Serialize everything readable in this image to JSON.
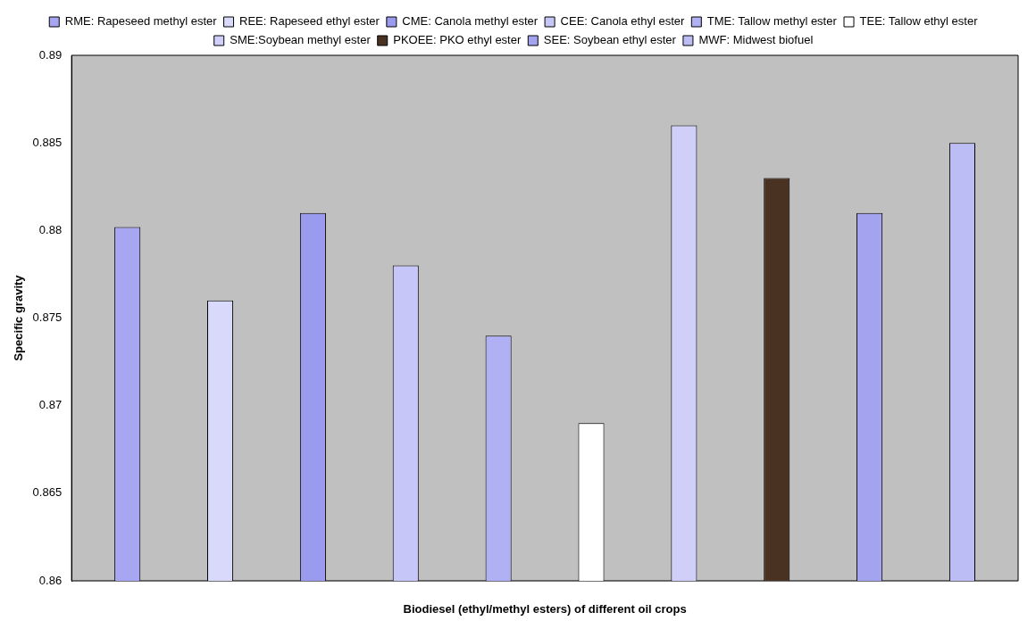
{
  "chart_data": {
    "type": "bar",
    "xlabel": "Biodiesel (ethyl/methyl esters) of different oil crops",
    "ylabel": "Specific gravity",
    "categories": [
      null
    ],
    "series": [
      {
        "name": "RME: Rapeseed methyl ester",
        "color": "#a6a6f2",
        "values": [
          0.8802
        ]
      },
      {
        "name": "REE: Rapeseed ethyl ester",
        "color": "#d9d9fb",
        "values": [
          0.876
        ]
      },
      {
        "name": "CME: Canola methyl ester",
        "color": "#9a9aee",
        "values": [
          0.881
        ]
      },
      {
        "name": "CEE: Canola ethyl ester",
        "color": "#c6c6f8",
        "values": [
          0.878
        ]
      },
      {
        "name": "TME: Tallow methyl ester",
        "color": "#b0b0f4",
        "values": [
          0.874
        ]
      },
      {
        "name": "TEE: Tallow ethyl ester",
        "color": "#ffffff",
        "values": [
          0.869
        ]
      },
      {
        "name": "SME:Soybean methyl ester",
        "color": "#cfcffa",
        "values": [
          0.886
        ]
      },
      {
        "name": "PKOEE: PKO ethyl ester",
        "color": "#4a3222",
        "values": [
          0.883
        ]
      },
      {
        "name": "SEE: Soybean ethyl ester",
        "color": "#a3a3f0",
        "values": [
          0.881
        ]
      },
      {
        "name": "MWF: Midwest biofuel",
        "color": "#bdbdf6",
        "values": [
          0.885
        ]
      }
    ],
    "ylim": [
      0.86,
      0.89
    ],
    "yticks": [
      0.86,
      0.865,
      0.87,
      0.875,
      0.88,
      0.885,
      0.89
    ],
    "legend": "top"
  }
}
